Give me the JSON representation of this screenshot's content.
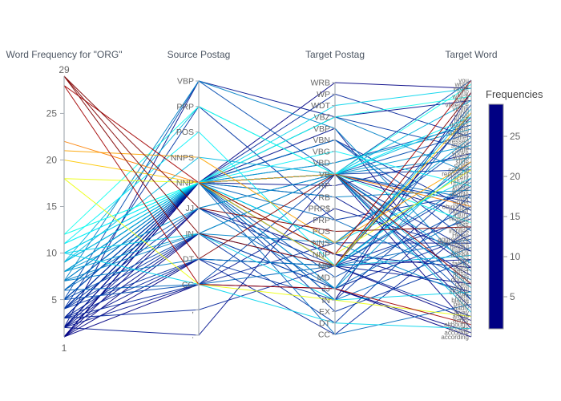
{
  "chart_data": {
    "type": "parallel-coordinates",
    "title": "",
    "legend_position": "right-colorbar",
    "grid": false,
    "colorbar": {
      "title": "Frequencies",
      "min": 1,
      "max": 29,
      "ticks": [
        5,
        10,
        15,
        20,
        25
      ],
      "colorscale_name": "jet",
      "jet_stops": [
        [
          0.0,
          [
            0,
            0,
            131
          ]
        ],
        [
          0.125,
          [
            0,
            60,
            170
          ]
        ],
        [
          0.375,
          [
            5,
            255,
            255
          ]
        ],
        [
          0.625,
          [
            255,
            255,
            0
          ]
        ],
        [
          0.875,
          [
            250,
            0,
            0
          ]
        ],
        [
          1.0,
          [
            128,
            0,
            0
          ]
        ]
      ]
    },
    "axes": [
      {
        "title": "Word Frequency for \"ORG\"",
        "type": "numeric",
        "range": [
          1,
          29
        ],
        "top_label": "29",
        "bottom_label": "1",
        "ticks": [
          5,
          10,
          15,
          20,
          25
        ]
      },
      {
        "title": "Source Postag",
        "type": "category",
        "categories": [
          "VBP",
          "PRP",
          "POS",
          "NNPS",
          "NNP",
          "JJ",
          "IN",
          "DT",
          "CC",
          ",",
          "."
        ]
      },
      {
        "title": "Target Postag",
        "type": "category",
        "categories": [
          "WRB",
          "WP",
          "WDT",
          "VBZ",
          "VBP",
          "VBN",
          "VBG",
          "VBD",
          "VB",
          "RP",
          "RB",
          "PRP$",
          "PRP",
          "POS",
          "NNS",
          "NNP",
          "NN",
          "MD",
          "JJ",
          "IN",
          "EX",
          "DT",
          "CC"
        ]
      },
      {
        "title": "Target Word",
        "type": "category",
        "categories": [
          "you",
          "word",
          "wrote",
          "why",
          "which",
          "were",
          "violence",
          "victim",
          "until",
          "three",
          "there",
          "thanks",
          "team",
          "support",
          "suffer",
          "stressed",
          "strong",
          "state",
          "spoke",
          "social",
          "slide",
          "signs",
          "several",
          "represent",
          "recent",
          "refuse",
          "proud",
          "police",
          "people",
          "over",
          "upset",
          "obviously",
          "murder",
          "injury",
          "reason",
          "case",
          "John",
          "implies",
          "Helen",
          "aggressive",
          "experience",
          "helpful",
          "happy",
          "forced",
          "fear",
          "family",
          "enjoy",
          "effect",
          "drugs",
          "doctor",
          "cried",
          "control",
          "charge",
          "calm",
          "blame",
          "belief",
          "badly",
          "away",
          "argue",
          "angry",
          "although",
          "accuse",
          "accurate",
          "according"
        ]
      }
    ],
    "records_fields": [
      "frequency",
      "source_postag_index",
      "target_postag_index",
      "target_word_index"
    ],
    "records": [
      [
        29,
        5,
        13,
        36
      ],
      [
        29,
        6,
        16,
        3
      ],
      [
        29,
        7,
        8,
        50
      ],
      [
        28,
        8,
        18,
        60
      ],
      [
        28,
        4,
        15,
        0
      ],
      [
        22,
        4,
        8,
        31
      ],
      [
        21,
        3,
        14,
        20
      ],
      [
        20,
        4,
        16,
        8
      ],
      [
        18,
        4,
        15,
        22
      ],
      [
        18,
        8,
        19,
        58
      ],
      [
        12,
        1,
        8,
        1
      ],
      [
        12,
        4,
        3,
        4
      ],
      [
        11,
        4,
        8,
        9
      ],
      [
        11,
        2,
        16,
        21
      ],
      [
        10,
        4,
        14,
        24
      ],
      [
        10,
        6,
        19,
        52
      ],
      [
        10,
        4,
        2,
        2
      ],
      [
        12,
        4,
        8,
        35
      ],
      [
        10,
        8,
        21,
        61
      ],
      [
        11,
        4,
        6,
        26
      ],
      [
        9,
        4,
        8,
        5
      ],
      [
        9,
        4,
        16,
        7
      ],
      [
        9,
        1,
        8,
        10
      ],
      [
        8,
        4,
        7,
        12
      ],
      [
        8,
        4,
        14,
        14
      ],
      [
        8,
        6,
        8,
        16
      ],
      [
        8,
        4,
        18,
        18
      ],
      [
        7,
        4,
        8,
        19
      ],
      [
        7,
        4,
        3,
        23
      ],
      [
        7,
        7,
        16,
        25
      ],
      [
        7,
        4,
        10,
        27
      ],
      [
        6,
        4,
        8,
        29
      ],
      [
        6,
        5,
        18,
        33
      ],
      [
        6,
        4,
        5,
        37
      ],
      [
        6,
        8,
        16,
        39
      ],
      [
        6,
        4,
        19,
        41
      ],
      [
        9,
        4,
        16,
        43
      ],
      [
        8,
        4,
        8,
        45
      ],
      [
        7,
        0,
        4,
        47
      ],
      [
        6,
        4,
        12,
        49
      ],
      [
        8,
        5,
        8,
        51
      ],
      [
        7,
        6,
        14,
        53
      ],
      [
        6,
        4,
        22,
        55
      ],
      [
        9,
        3,
        8,
        57
      ],
      [
        5,
        4,
        8,
        0
      ],
      [
        5,
        4,
        16,
        6
      ],
      [
        5,
        6,
        18,
        8
      ],
      [
        5,
        4,
        7,
        11
      ],
      [
        5,
        8,
        8,
        13
      ],
      [
        5,
        4,
        14,
        15
      ],
      [
        4,
        4,
        3,
        17
      ],
      [
        4,
        5,
        16,
        20
      ],
      [
        4,
        4,
        8,
        22
      ],
      [
        4,
        7,
        19,
        24
      ],
      [
        4,
        4,
        16,
        26
      ],
      [
        4,
        1,
        12,
        28
      ],
      [
        3,
        4,
        8,
        30
      ],
      [
        3,
        4,
        5,
        32
      ],
      [
        3,
        6,
        16,
        34
      ],
      [
        3,
        4,
        18,
        38
      ],
      [
        3,
        8,
        14,
        40
      ],
      [
        3,
        4,
        8,
        42
      ],
      [
        2,
        4,
        16,
        44
      ],
      [
        2,
        5,
        8,
        46
      ],
      [
        2,
        4,
        10,
        48
      ],
      [
        2,
        7,
        16,
        50
      ],
      [
        2,
        4,
        4,
        54
      ],
      [
        2,
        6,
        8,
        56
      ],
      [
        1,
        4,
        16,
        59
      ],
      [
        1,
        4,
        8,
        61
      ],
      [
        1,
        8,
        18,
        62
      ],
      [
        1,
        4,
        19,
        3
      ],
      [
        1,
        7,
        16,
        9
      ],
      [
        1,
        4,
        0,
        2
      ],
      [
        2,
        0,
        3,
        5
      ],
      [
        3,
        9,
        16,
        21
      ],
      [
        2,
        10,
        8,
        33
      ],
      [
        4,
        4,
        20,
        44
      ],
      [
        5,
        4,
        17,
        31
      ],
      [
        3,
        4,
        1,
        14
      ],
      [
        2,
        4,
        9,
        18
      ],
      [
        4,
        6,
        21,
        28
      ],
      [
        3,
        7,
        22,
        36
      ],
      [
        2,
        8,
        11,
        42
      ],
      [
        1,
        5,
        15,
        46
      ],
      [
        2,
        4,
        15,
        52
      ],
      [
        3,
        4,
        16,
        58
      ],
      [
        1,
        6,
        18,
        63
      ],
      [
        4,
        4,
        5,
        40
      ],
      [
        5,
        0,
        8,
        54
      ]
    ]
  }
}
